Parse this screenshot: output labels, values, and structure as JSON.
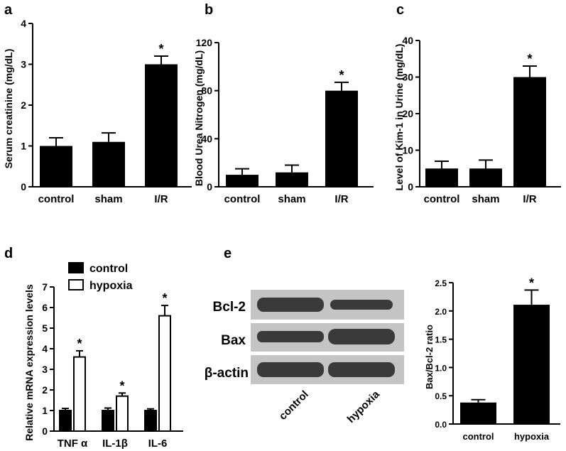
{
  "panels": {
    "a": {
      "letter": "a"
    },
    "b": {
      "letter": "b"
    },
    "c": {
      "letter": "c"
    },
    "d": {
      "letter": "d"
    },
    "e": {
      "letter": "e",
      "blot_rows": [
        "Bcl-2",
        "Bax",
        "β-actin"
      ],
      "blot_lanes": [
        "control",
        "hypoxia"
      ]
    }
  },
  "colors": {
    "bar_fill": "#000000",
    "open_fill": "#ffffff",
    "axis": "#000000",
    "blot_bg": "#c4c4c4",
    "band": "#3a3a3a"
  },
  "chart_data": [
    {
      "id": "a",
      "type": "bar",
      "categories": [
        "control",
        "sham",
        "I/R"
      ],
      "values": [
        1.0,
        1.1,
        3.0
      ],
      "errors": [
        0.2,
        0.22,
        0.2
      ],
      "significance": [
        "",
        "",
        "*"
      ],
      "ylabel": "Serum creatinine (mg/dL)",
      "xlabel": "",
      "ylim": [
        0,
        4
      ],
      "yticks": [
        0,
        1,
        2,
        3,
        4
      ]
    },
    {
      "id": "b",
      "type": "bar",
      "categories": [
        "control",
        "sham",
        "I/R"
      ],
      "values": [
        10,
        12,
        80
      ],
      "errors": [
        5,
        6,
        7
      ],
      "significance": [
        "",
        "",
        "*"
      ],
      "ylabel": "Blood Urea Nitrogen (mg/dL)",
      "xlabel": "",
      "ylim": [
        0,
        120
      ],
      "yticks": [
        0,
        40,
        80,
        120
      ]
    },
    {
      "id": "c",
      "type": "bar",
      "categories": [
        "control",
        "sham",
        "I/R"
      ],
      "values": [
        5,
        5,
        30
      ],
      "errors": [
        2,
        2.3,
        3
      ],
      "significance": [
        "",
        "",
        "*"
      ],
      "ylabel": "Level of Kim-1 in Urine (mg/dL)",
      "xlabel": "",
      "ylim": [
        0,
        40
      ],
      "yticks": [
        0,
        10,
        20,
        30,
        40
      ]
    },
    {
      "id": "d",
      "type": "bar",
      "categories": [
        "TNF α",
        "IL-1β",
        "IL-6"
      ],
      "series": [
        {
          "name": "control",
          "values": [
            1.0,
            1.0,
            1.0
          ],
          "errors": [
            0.1,
            0.12,
            0.08
          ],
          "significance": [
            "",
            "",
            ""
          ]
        },
        {
          "name": "hypoxia",
          "values": [
            3.6,
            1.7,
            5.6
          ],
          "errors": [
            0.3,
            0.15,
            0.5
          ],
          "significance": [
            "*",
            "*",
            "*"
          ]
        }
      ],
      "ylabel": "Relative mRNA expression levels",
      "xlabel": "",
      "ylim": [
        0,
        7
      ],
      "yticks": [
        0,
        1,
        2,
        3,
        4,
        5,
        6,
        7
      ],
      "legend": "top-left"
    },
    {
      "id": "e",
      "type": "bar",
      "categories": [
        "control",
        "hypoxia"
      ],
      "values": [
        0.38,
        2.11
      ],
      "errors": [
        0.05,
        0.26
      ],
      "significance": [
        "",
        "*"
      ],
      "ylabel": "Bax/Bcl-2 ratio",
      "xlabel": "",
      "ylim": [
        0,
        2.5
      ],
      "yticks": [
        0,
        0.5,
        1.0,
        1.5,
        2.0,
        2.5
      ]
    }
  ]
}
